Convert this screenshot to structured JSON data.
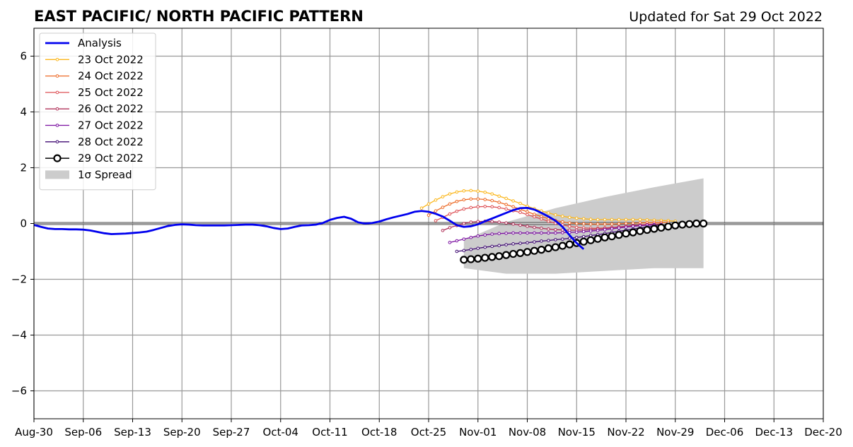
{
  "chart_data": {
    "type": "line",
    "title": "EAST PACIFIC/ NORTH PACIFIC PATTERN",
    "subtitle": "Updated for Sat 29 Oct 2022",
    "xlabel": "",
    "ylabel": "",
    "xlim": [
      "2022-08-30",
      "2022-12-20"
    ],
    "ylim": [
      -7,
      7
    ],
    "grid": true,
    "legend_position": "upper-left",
    "x_ticks": [
      "Aug-30",
      "Sep-06",
      "Sep-13",
      "Sep-20",
      "Sep-27",
      "Oct-04",
      "Oct-11",
      "Oct-18",
      "Oct-25",
      "Nov-01",
      "Nov-08",
      "Nov-15",
      "Nov-22",
      "Nov-29",
      "Dec-06",
      "Dec-13",
      "Dec-20"
    ],
    "y_ticks": [
      6,
      4,
      2,
      0,
      -2,
      -4,
      -6
    ],
    "y_tick_labels": [
      "6",
      "4",
      "2",
      "0",
      "−2",
      "−4",
      "−6"
    ],
    "analysis": {
      "name": "Analysis",
      "color": "#0000ee",
      "start": "2022-08-30",
      "step_days": 1,
      "values": [
        -0.05,
        -0.12,
        -0.18,
        -0.2,
        -0.2,
        -0.21,
        -0.21,
        -0.22,
        -0.25,
        -0.3,
        -0.35,
        -0.38,
        -0.37,
        -0.36,
        -0.34,
        -0.32,
        -0.29,
        -0.23,
        -0.16,
        -0.09,
        -0.05,
        -0.03,
        -0.04,
        -0.06,
        -0.07,
        -0.07,
        -0.07,
        -0.07,
        -0.06,
        -0.05,
        -0.04,
        -0.04,
        -0.06,
        -0.1,
        -0.16,
        -0.2,
        -0.18,
        -0.12,
        -0.07,
        -0.06,
        -0.04,
        0.02,
        0.13,
        0.2,
        0.24,
        0.17,
        0.04,
        0.0,
        0.02,
        0.07,
        0.15,
        0.22,
        0.28,
        0.34,
        0.42,
        0.45,
        0.42,
        0.35,
        0.25,
        0.1,
        -0.06,
        -0.12,
        -0.1,
        -0.03,
        0.08,
        0.18,
        0.28,
        0.38,
        0.48,
        0.55,
        0.56,
        0.5,
        0.38,
        0.25,
        0.1,
        -0.12,
        -0.42,
        -0.7,
        -0.92
      ]
    },
    "forecasts": [
      {
        "name": "23 Oct 2022",
        "color": "#fbb61a",
        "start": "2022-10-24",
        "values": [
          0.55,
          0.7,
          0.84,
          0.96,
          1.06,
          1.13,
          1.17,
          1.18,
          1.16,
          1.12,
          1.06,
          0.98,
          0.9,
          0.81,
          0.72,
          0.62,
          0.53,
          0.45,
          0.38,
          0.31,
          0.26,
          0.22,
          0.19,
          0.17,
          0.15,
          0.14,
          0.14,
          0.14,
          0.14,
          0.14,
          0.14,
          0.14,
          0.13,
          0.12,
          0.11,
          0.1,
          0.08
        ]
      },
      {
        "name": "24 Oct 2022",
        "color": "#ed6925",
        "start": "2022-10-25",
        "values": [
          0.3,
          0.45,
          0.58,
          0.7,
          0.79,
          0.85,
          0.88,
          0.88,
          0.86,
          0.82,
          0.76,
          0.68,
          0.6,
          0.51,
          0.42,
          0.33,
          0.25,
          0.17,
          0.11,
          0.06,
          0.02,
          0.0,
          -0.01,
          -0.02,
          -0.02,
          -0.02,
          -0.02,
          -0.01,
          0.0,
          0.01,
          0.02,
          0.03,
          0.04,
          0.04,
          0.04
        ]
      },
      {
        "name": "25 Oct 2022",
        "color": "#dd5055",
        "start": "2022-10-26",
        "values": [
          0.1,
          0.22,
          0.34,
          0.44,
          0.52,
          0.57,
          0.6,
          0.61,
          0.6,
          0.57,
          0.52,
          0.46,
          0.4,
          0.32,
          0.24,
          0.16,
          0.08,
          0.01,
          -0.05,
          -0.1,
          -0.14,
          -0.16,
          -0.17,
          -0.17,
          -0.16,
          -0.14,
          -0.12,
          -0.1,
          -0.07,
          -0.05,
          -0.03,
          -0.02,
          -0.01
        ]
      },
      {
        "name": "26 Oct 2022",
        "color": "#b1325a",
        "start": "2022-10-27",
        "values": [
          -0.25,
          -0.15,
          -0.07,
          0.0,
          0.05,
          0.07,
          0.08,
          0.07,
          0.05,
          0.02,
          -0.02,
          -0.06,
          -0.1,
          -0.14,
          -0.17,
          -0.2,
          -0.22,
          -0.23,
          -0.24,
          -0.24,
          -0.23,
          -0.22,
          -0.2,
          -0.18,
          -0.15,
          -0.12,
          -0.1,
          -0.08,
          -0.06,
          -0.05,
          -0.04
        ]
      },
      {
        "name": "27 Oct 2022",
        "color": "#7a0fa0",
        "start": "2022-10-28",
        "values": [
          -0.68,
          -0.62,
          -0.56,
          -0.5,
          -0.45,
          -0.41,
          -0.38,
          -0.36,
          -0.35,
          -0.34,
          -0.34,
          -0.34,
          -0.34,
          -0.34,
          -0.34,
          -0.34,
          -0.33,
          -0.32,
          -0.31,
          -0.29,
          -0.27,
          -0.25,
          -0.22,
          -0.19,
          -0.16,
          -0.13,
          -0.1,
          -0.08,
          -0.06,
          -0.04
        ]
      },
      {
        "name": "28 Oct 2022",
        "color": "#3f0a73",
        "start": "2022-10-29",
        "values": [
          -1.0,
          -0.97,
          -0.93,
          -0.89,
          -0.85,
          -0.82,
          -0.79,
          -0.76,
          -0.73,
          -0.71,
          -0.69,
          -0.66,
          -0.63,
          -0.61,
          -0.58,
          -0.56,
          -0.53,
          -0.5,
          -0.47,
          -0.43,
          -0.4,
          -0.36,
          -0.32,
          -0.28,
          -0.24,
          -0.2,
          -0.16,
          -0.12,
          -0.08,
          -0.04
        ]
      },
      {
        "name": "29 Oct 2022",
        "color": "#000000",
        "start": "2022-10-30",
        "values": [
          -1.3,
          -1.28,
          -1.26,
          -1.23,
          -1.2,
          -1.17,
          -1.13,
          -1.09,
          -1.06,
          -1.02,
          -0.98,
          -0.94,
          -0.89,
          -0.85,
          -0.8,
          -0.75,
          -0.7,
          -0.65,
          -0.6,
          -0.55,
          -0.5,
          -0.46,
          -0.41,
          -0.36,
          -0.32,
          -0.27,
          -0.23,
          -0.19,
          -0.15,
          -0.11,
          -0.07,
          -0.04,
          -0.02,
          0.0,
          0.0
        ]
      }
    ],
    "spread": {
      "name": "1σ Spread",
      "color": "#cccccc",
      "x": [
        "2022-10-30",
        "2022-11-05",
        "2022-11-12",
        "2022-11-19",
        "2022-11-26",
        "2022-12-03"
      ],
      "upper": [
        -0.6,
        0.05,
        0.55,
        0.95,
        1.3,
        1.62
      ],
      "lower": [
        -1.6,
        -1.8,
        -1.8,
        -1.7,
        -1.6,
        -1.6
      ]
    }
  }
}
